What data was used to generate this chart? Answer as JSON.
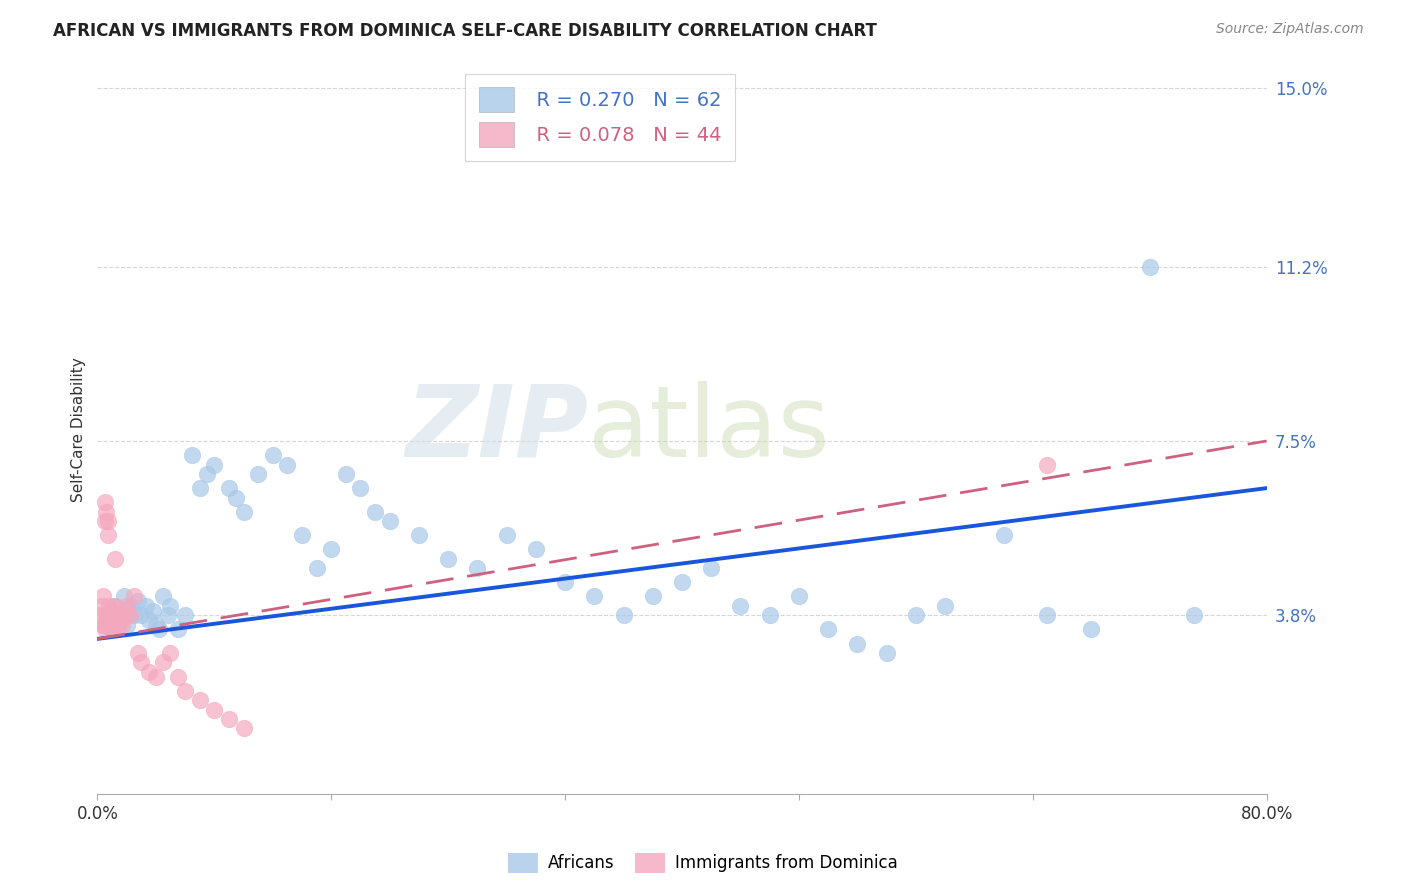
{
  "title": "AFRICAN VS IMMIGRANTS FROM DOMINICA SELF-CARE DISABILITY CORRELATION CHART",
  "source": "Source: ZipAtlas.com",
  "ylabel": "Self-Care Disability",
  "xlim": [
    0.0,
    0.8
  ],
  "ylim": [
    0.0,
    0.155
  ],
  "yticks": [
    0.038,
    0.075,
    0.112,
    0.15
  ],
  "ytick_labels": [
    "3.8%",
    "7.5%",
    "11.2%",
    "15.0%"
  ],
  "xticks": [
    0.0,
    0.16,
    0.32,
    0.48,
    0.64,
    0.8
  ],
  "xtick_labels": [
    "0.0%",
    "",
    "",
    "",
    "",
    "80.0%"
  ],
  "grid_color": "#cccccc",
  "background_color": "#ffffff",
  "legend_r1": "R = 0.270",
  "legend_n1": "N = 62",
  "legend_r2": "R = 0.078",
  "legend_n2": "N = 44",
  "blue_color": "#a8c8e8",
  "pink_color": "#f4a8be",
  "line_blue": "#1a56db",
  "line_pink": "#d06080",
  "tick_label_color": "#4472c4",
  "africans_x": [
    0.005,
    0.008,
    0.01,
    0.012,
    0.015,
    0.018,
    0.02,
    0.022,
    0.025,
    0.028,
    0.03,
    0.033,
    0.035,
    0.038,
    0.04,
    0.042,
    0.045,
    0.048,
    0.05,
    0.055,
    0.06,
    0.065,
    0.07,
    0.075,
    0.08,
    0.09,
    0.095,
    0.1,
    0.11,
    0.12,
    0.13,
    0.14,
    0.15,
    0.16,
    0.17,
    0.18,
    0.19,
    0.2,
    0.22,
    0.24,
    0.26,
    0.28,
    0.3,
    0.32,
    0.34,
    0.36,
    0.38,
    0.4,
    0.42,
    0.44,
    0.46,
    0.48,
    0.5,
    0.52,
    0.54,
    0.56,
    0.58,
    0.62,
    0.65,
    0.68,
    0.72,
    0.75
  ],
  "africans_y": [
    0.036,
    0.038,
    0.035,
    0.04,
    0.038,
    0.042,
    0.036,
    0.04,
    0.038,
    0.041,
    0.038,
    0.04,
    0.037,
    0.039,
    0.036,
    0.035,
    0.042,
    0.038,
    0.04,
    0.035,
    0.038,
    0.072,
    0.065,
    0.068,
    0.07,
    0.065,
    0.063,
    0.06,
    0.068,
    0.072,
    0.07,
    0.055,
    0.048,
    0.052,
    0.068,
    0.065,
    0.06,
    0.058,
    0.055,
    0.05,
    0.048,
    0.055,
    0.052,
    0.045,
    0.042,
    0.038,
    0.042,
    0.045,
    0.048,
    0.04,
    0.038,
    0.042,
    0.035,
    0.032,
    0.03,
    0.038,
    0.04,
    0.055,
    0.038,
    0.035,
    0.112,
    0.038
  ],
  "dominica_x": [
    0.002,
    0.003,
    0.004,
    0.004,
    0.005,
    0.005,
    0.006,
    0.006,
    0.007,
    0.007,
    0.008,
    0.008,
    0.009,
    0.009,
    0.01,
    0.01,
    0.011,
    0.012,
    0.013,
    0.014,
    0.015,
    0.016,
    0.017,
    0.018,
    0.019,
    0.02,
    0.022,
    0.025,
    0.028,
    0.03,
    0.035,
    0.04,
    0.045,
    0.05,
    0.055,
    0.06,
    0.07,
    0.08,
    0.09,
    0.1,
    0.005,
    0.007,
    0.012,
    0.65
  ],
  "dominica_y": [
    0.038,
    0.04,
    0.036,
    0.042,
    0.058,
    0.035,
    0.06,
    0.038,
    0.055,
    0.036,
    0.038,
    0.04,
    0.036,
    0.039,
    0.038,
    0.035,
    0.037,
    0.04,
    0.038,
    0.036,
    0.038,
    0.037,
    0.036,
    0.038,
    0.039,
    0.04,
    0.038,
    0.042,
    0.03,
    0.028,
    0.026,
    0.025,
    0.028,
    0.03,
    0.025,
    0.022,
    0.02,
    0.018,
    0.016,
    0.014,
    0.062,
    0.058,
    0.05,
    0.07
  ],
  "watermark_zip": "ZIP",
  "watermark_atlas": "atlas"
}
